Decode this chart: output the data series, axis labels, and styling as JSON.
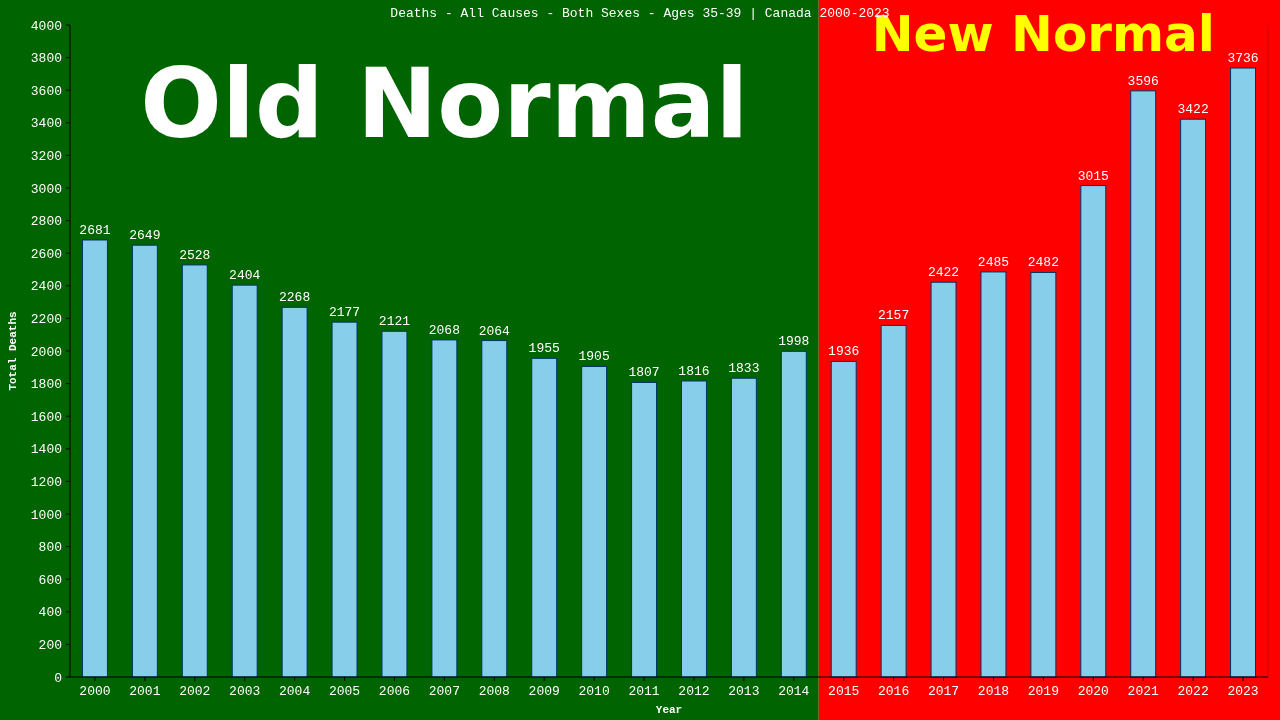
{
  "chart_data": {
    "type": "bar",
    "title": "Deaths - All Causes - Both Sexes - Ages 35-39 | Canada 2000-2023",
    "xlabel": "Year",
    "ylabel": "Total Deaths",
    "categories": [
      "2000",
      "2001",
      "2002",
      "2003",
      "2004",
      "2005",
      "2006",
      "2007",
      "2008",
      "2009",
      "2010",
      "2011",
      "2012",
      "2013",
      "2014",
      "2015",
      "2016",
      "2017",
      "2018",
      "2019",
      "2020",
      "2021",
      "2022",
      "2023"
    ],
    "values": [
      2681,
      2649,
      2528,
      2404,
      2268,
      2177,
      2121,
      2068,
      2064,
      1955,
      1905,
      1807,
      1816,
      1833,
      1998,
      1936,
      2157,
      2422,
      2485,
      2482,
      3015,
      3596,
      3422,
      3736
    ],
    "color": "#87ceeb",
    "ylim": [
      0,
      4000
    ],
    "yticks": [
      0,
      200,
      400,
      600,
      800,
      1000,
      1200,
      1400,
      1600,
      1800,
      2000,
      2200,
      2400,
      2600,
      2800,
      3000,
      3200,
      3400,
      3600,
      3800,
      4000
    ],
    "data_labels": true,
    "bands": [
      {
        "axis": "x",
        "from": "2000",
        "to": "2014",
        "label": "Old Normal",
        "color": "#006400"
      },
      {
        "axis": "x",
        "from": "2015",
        "to": "2023",
        "label": "New Normal",
        "color": "#ff0000"
      }
    ]
  }
}
